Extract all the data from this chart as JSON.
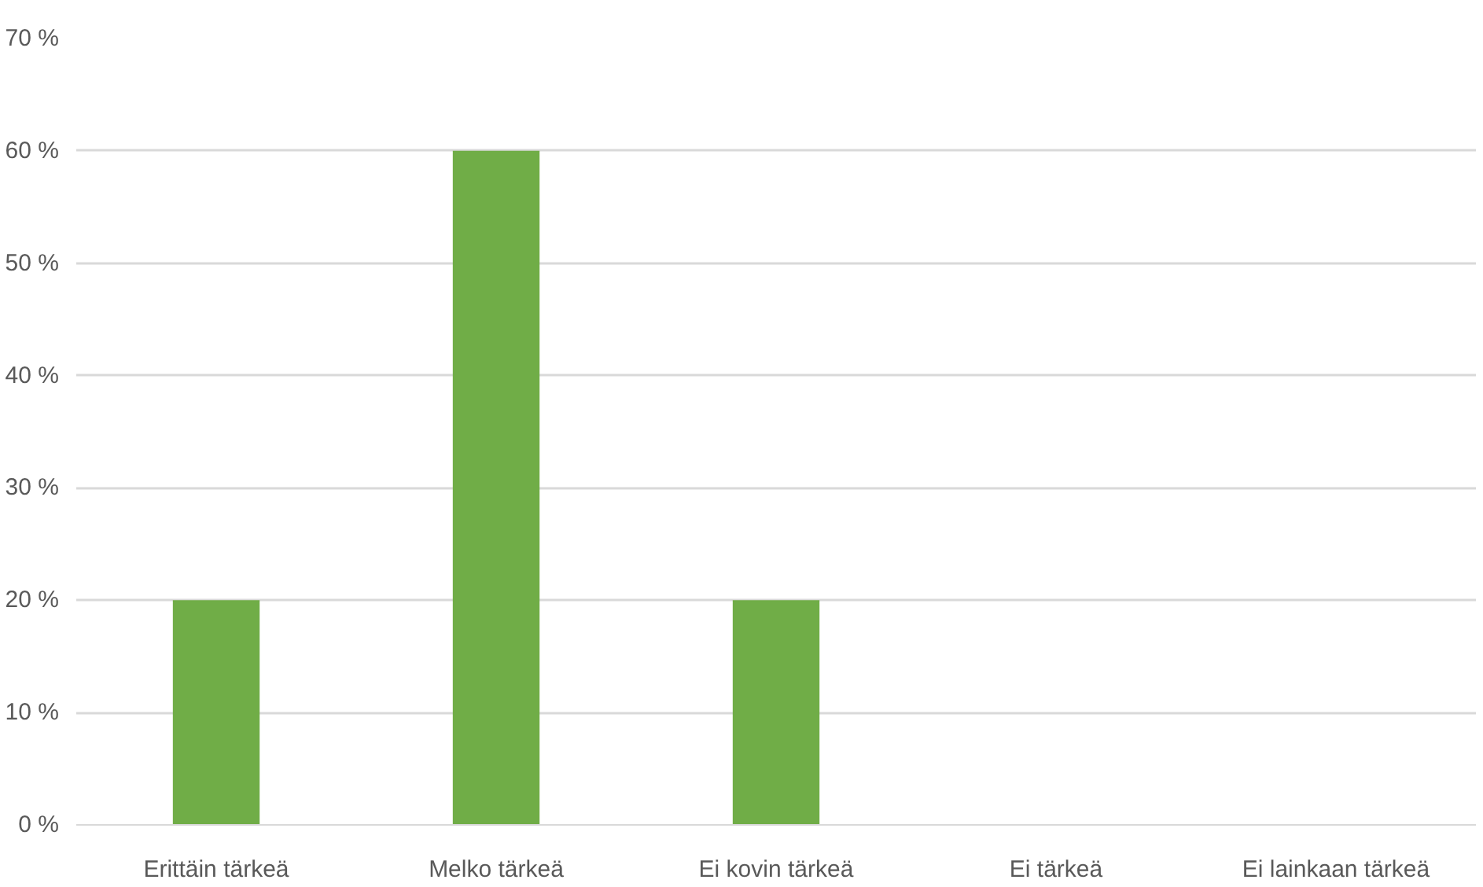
{
  "chart_data": {
    "type": "bar",
    "categories": [
      "Erittäin tärkeä",
      "Melko tärkeä",
      "Ei kovin tärkeä",
      "Ei tärkeä",
      "Ei lainkaan tärkeä"
    ],
    "values": [
      20,
      60,
      20,
      0,
      0
    ],
    "color": "#70ad47",
    "ylim": [
      0,
      70
    ],
    "yticks": [
      {
        "value": 0,
        "label": "0 %"
      },
      {
        "value": 10,
        "label": "10 %"
      },
      {
        "value": 20,
        "label": "20 %"
      },
      {
        "value": 30,
        "label": "30 %"
      },
      {
        "value": 40,
        "label": "40 %"
      },
      {
        "value": 50,
        "label": "50 %"
      },
      {
        "value": 60,
        "label": "60 %"
      },
      {
        "value": 70,
        "label": "70 %"
      }
    ],
    "grid": "y"
  }
}
